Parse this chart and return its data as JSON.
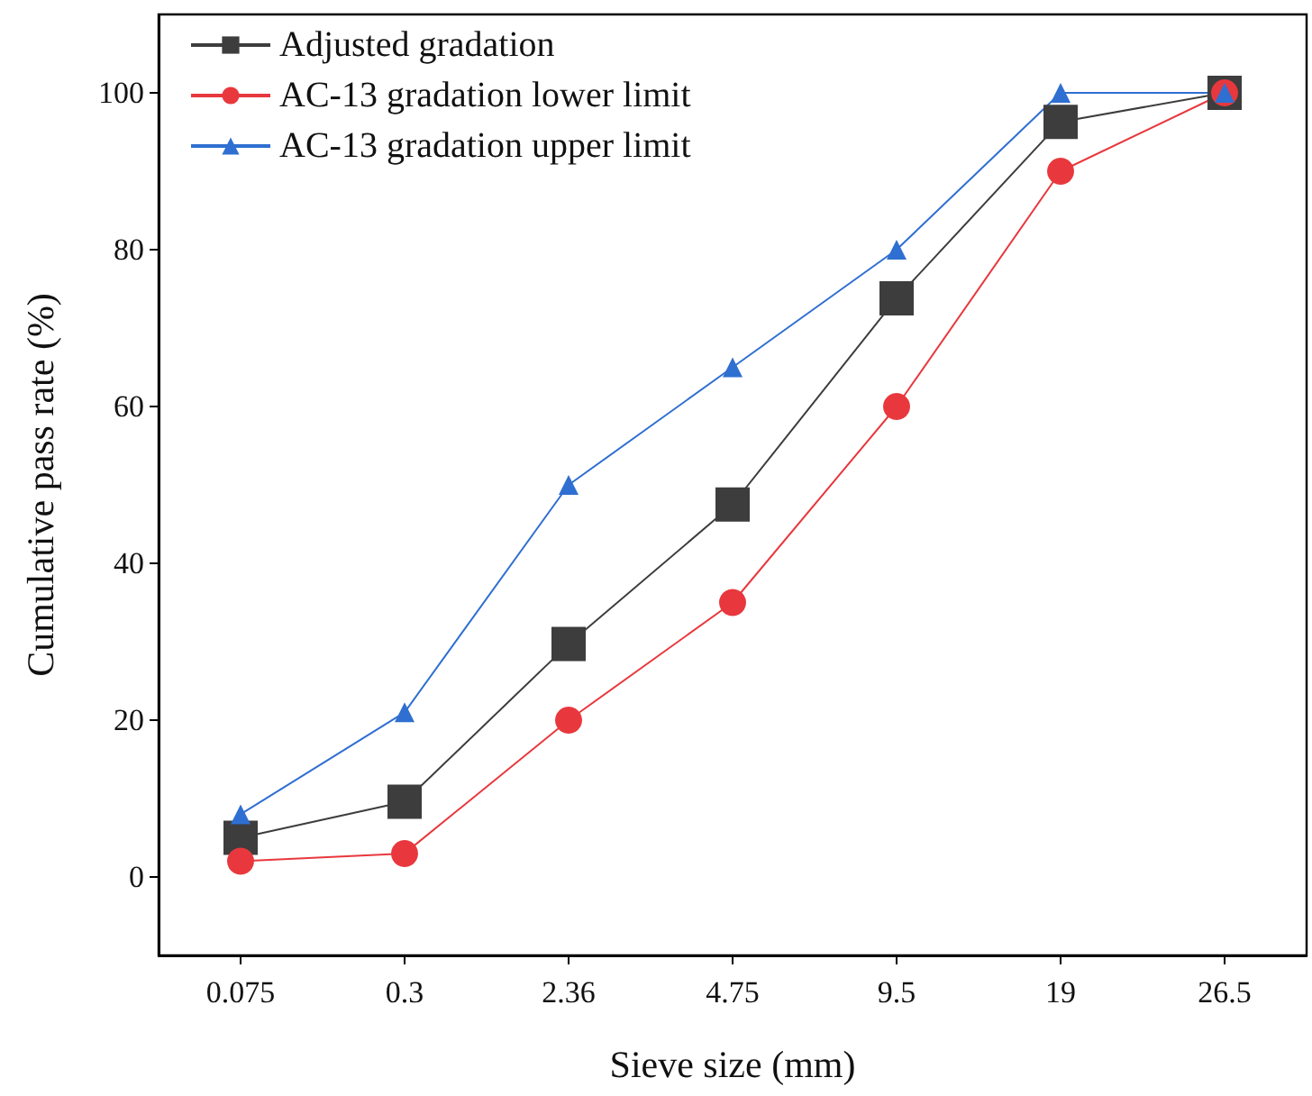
{
  "chart_data": {
    "type": "line",
    "xlabel": "Sieve size (mm)",
    "ylabel": "Cumulative pass rate (%)",
    "categories": [
      "0.075",
      "0.3",
      "2.36",
      "4.75",
      "9.5",
      "19",
      "26.5"
    ],
    "series": [
      {
        "name": "Adjusted gradation",
        "color": "#3d3d3d",
        "marker": "square",
        "values": [
          5,
          9.6,
          29.7,
          47.5,
          73.8,
          96.3,
          100
        ]
      },
      {
        "name": "AC-13 gradation lower limit",
        "color": "#e8383d",
        "marker": "circle",
        "values": [
          2,
          3,
          20,
          35,
          60,
          90,
          100
        ]
      },
      {
        "name": "AC-13 gradation upper limit",
        "color": "#2f6fd1",
        "marker": "triangle",
        "values": [
          8,
          21,
          50,
          65,
          80,
          100,
          100
        ]
      }
    ],
    "ylim": [
      -10,
      110
    ],
    "yticks": [
      0,
      20,
      40,
      60,
      80,
      100
    ],
    "legend": "top left",
    "grid": false,
    "line_style": "solid"
  }
}
